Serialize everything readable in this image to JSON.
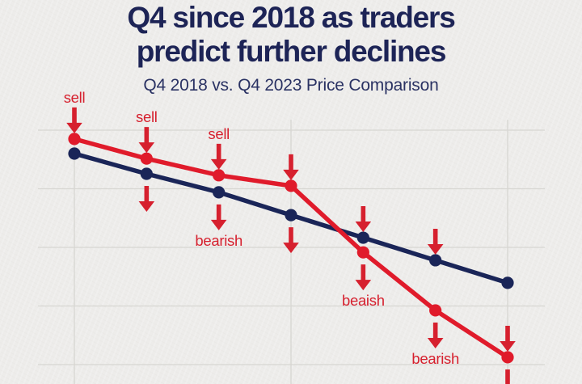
{
  "header": {
    "title_line1": "Q4 since 2018 as traders",
    "title_line2": "predict further declines",
    "subtitle": "Q4 2018 vs. Q4 2023 Price Comparison"
  },
  "colors": {
    "background": "#edecea",
    "title_navy": "#1d2456",
    "gridline": "#d7d6d2",
    "series_navy": "#1a2558",
    "series_red": "#e01b2b",
    "annotation_red": "#d6202e"
  },
  "chart_data": {
    "type": "line",
    "title": "Q4 2018 vs. Q4 2023 Price Comparison",
    "xlabel": "",
    "ylabel": "",
    "categories": [
      1,
      2,
      3,
      4,
      5,
      6,
      7
    ],
    "x_axis_labels_visible": false,
    "y_axis_labels_visible": false,
    "legend": "none",
    "grid": true,
    "y_gridline_values": [
      100,
      80,
      60,
      40,
      20
    ],
    "x_gridline_categories": [
      1,
      4,
      7
    ],
    "ylim": [
      15,
      105
    ],
    "units": "relative price index (unlabeled axes, estimated from gridlines)",
    "series": [
      {
        "key": "navy",
        "color": "#1a2558",
        "values": [
          92.0,
          85.1,
          78.8,
          71.0,
          63.3,
          55.6,
          47.9
        ]
      },
      {
        "key": "red",
        "color": "#e01b2b",
        "values": [
          97.0,
          90.3,
          84.6,
          81.0,
          58.3,
          38.5,
          22.5
        ]
      }
    ],
    "annotations": [
      {
        "x": 1,
        "side": "above",
        "series": "red",
        "label": "sell"
      },
      {
        "x": 2,
        "side": "above",
        "series": "red",
        "label": "sell"
      },
      {
        "x": 2,
        "side": "below",
        "series": "navy",
        "label": ""
      },
      {
        "x": 3,
        "side": "above",
        "series": "red",
        "label": "sell"
      },
      {
        "x": 3,
        "side": "below",
        "series": "navy",
        "label": "bearish"
      },
      {
        "x": 4,
        "side": "above",
        "series": "red",
        "label": ""
      },
      {
        "x": 4,
        "side": "below",
        "series": "navy",
        "label": ""
      },
      {
        "x": 5,
        "side": "above",
        "series": "navy",
        "label": ""
      },
      {
        "x": 5,
        "side": "below",
        "series": "red",
        "label": "beaish"
      },
      {
        "x": 6,
        "side": "above",
        "series": "navy",
        "label": ""
      },
      {
        "x": 6,
        "side": "below",
        "series": "red",
        "label": "bearish"
      },
      {
        "x": 7,
        "side": "above",
        "series": "red",
        "label": ""
      },
      {
        "x": 7,
        "side": "below",
        "series": "red",
        "label": ""
      }
    ]
  }
}
